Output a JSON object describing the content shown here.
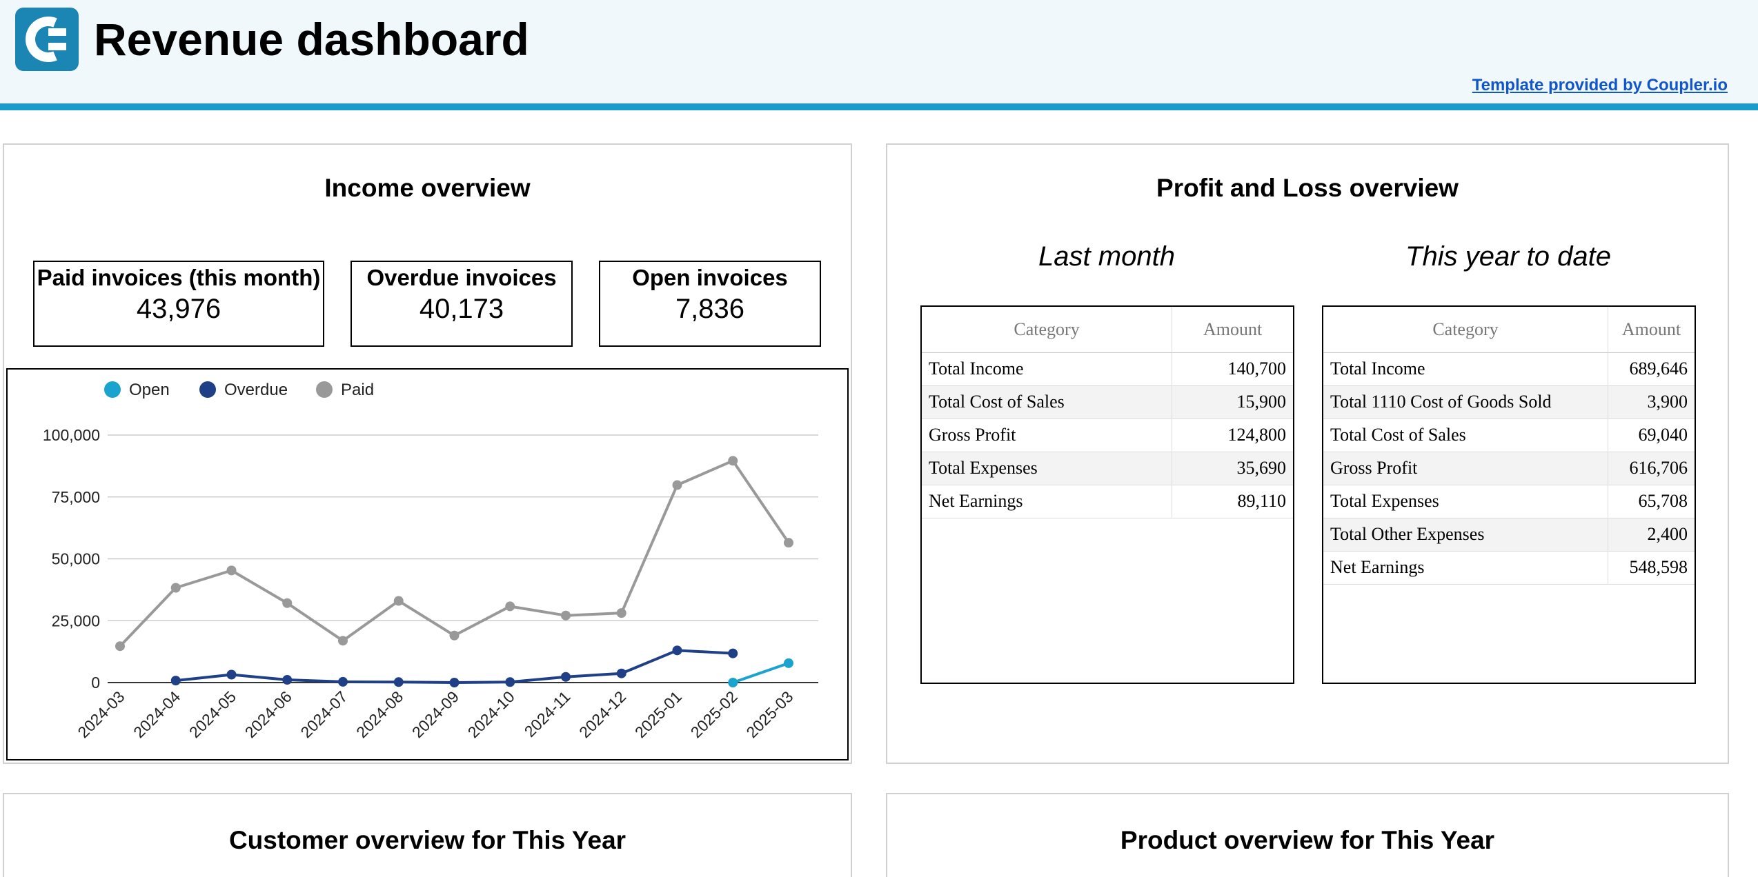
{
  "header": {
    "title": "Revenue dashboard",
    "credit": "Template provided by Coupler.io",
    "logo": "coupler-logo-icon",
    "accent_color": "#1a9bcb"
  },
  "income": {
    "title": "Income overview",
    "kpis": [
      {
        "label": "Paid invoices (this month)",
        "value": "43,976"
      },
      {
        "label": "Overdue invoices",
        "value": "40,173"
      },
      {
        "label": "Open invoices",
        "value": "7,836"
      }
    ]
  },
  "chart_data": {
    "type": "line",
    "x": [
      "2024-03",
      "2024-04",
      "2024-05",
      "2024-06",
      "2024-07",
      "2024-08",
      "2024-09",
      "2024-10",
      "2024-11",
      "2024-12",
      "2025-01",
      "2025-02",
      "2025-03"
    ],
    "yticks": [
      "0",
      "25,000",
      "50,000",
      "75,000",
      "100,000"
    ],
    "ylim": [
      0,
      100000
    ],
    "grid": true,
    "legend_position": "top-left",
    "series": [
      {
        "name": "Open",
        "color": "#1ba3cf",
        "values": [
          null,
          null,
          null,
          null,
          null,
          null,
          null,
          null,
          null,
          null,
          null,
          0,
          7836
        ]
      },
      {
        "name": "Overdue",
        "color": "#1f3f87",
        "values": [
          null,
          800,
          3200,
          1100,
          300,
          200,
          0,
          200,
          2300,
          3700,
          13000,
          11800,
          null
        ]
      },
      {
        "name": "Paid",
        "color": "#999999",
        "values": [
          14700,
          38300,
          45300,
          32100,
          16900,
          33000,
          19000,
          30800,
          27100,
          28100,
          79800,
          89600,
          56500
        ]
      }
    ]
  },
  "pl": {
    "title": "Profit and Loss overview",
    "last_month": {
      "title": "Last month",
      "headers": [
        "Category",
        "Amount"
      ],
      "rows": [
        [
          "Total Income",
          "140,700"
        ],
        [
          "Total Cost of Sales",
          "15,900"
        ],
        [
          "Gross Profit",
          "124,800"
        ],
        [
          "Total Expenses",
          "35,690"
        ],
        [
          "Net Earnings",
          "89,110"
        ]
      ]
    },
    "ytd": {
      "title": "This year to date",
      "headers": [
        "Category",
        "Amount"
      ],
      "rows": [
        [
          "Total Income",
          "689,646"
        ],
        [
          "Total 1110 Cost of Goods Sold",
          "3,900"
        ],
        [
          "Total Cost of Sales",
          "69,040"
        ],
        [
          "Gross Profit",
          "616,706"
        ],
        [
          "Total Expenses",
          "65,708"
        ],
        [
          "Total Other Expenses",
          "2,400"
        ],
        [
          "Net Earnings",
          "548,598"
        ]
      ]
    }
  },
  "customer": {
    "title": "Customer overview for This Year"
  },
  "product": {
    "title": "Product overview for This Year"
  }
}
